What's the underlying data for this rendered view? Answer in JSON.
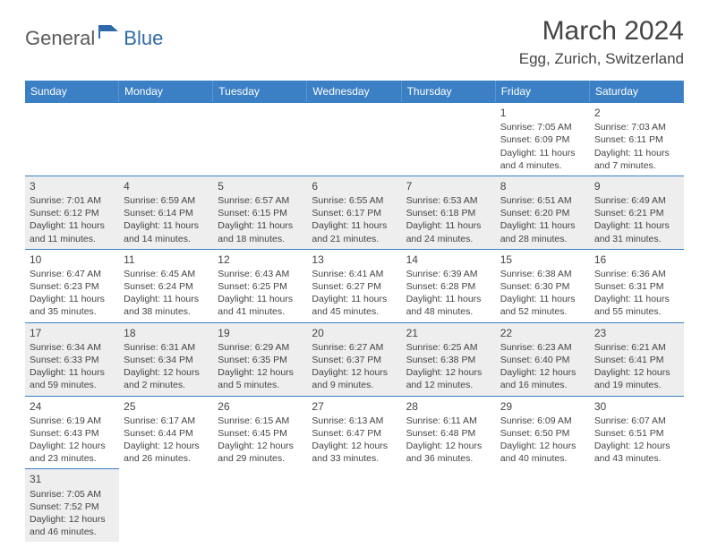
{
  "logo": {
    "text1": "General",
    "text2": "Blue"
  },
  "title": "March 2024",
  "location": "Egg, Zurich, Switzerland",
  "weekdays": [
    "Sunday",
    "Monday",
    "Tuesday",
    "Wednesday",
    "Thursday",
    "Friday",
    "Saturday"
  ],
  "colors": {
    "header_bg": "#3b7fc4",
    "header_text": "#ffffff",
    "cell_border": "#3b7fc4",
    "odd_row_bg": "#eeeeee",
    "even_row_bg": "#ffffff",
    "text": "#444444",
    "logo_gray": "#5a5a5a",
    "logo_blue": "#2f6aa8"
  },
  "leading_blanks": 5,
  "days": [
    {
      "n": "1",
      "sunrise": "Sunrise: 7:05 AM",
      "sunset": "Sunset: 6:09 PM",
      "daylight": "Daylight: 11 hours and 4 minutes."
    },
    {
      "n": "2",
      "sunrise": "Sunrise: 7:03 AM",
      "sunset": "Sunset: 6:11 PM",
      "daylight": "Daylight: 11 hours and 7 minutes."
    },
    {
      "n": "3",
      "sunrise": "Sunrise: 7:01 AM",
      "sunset": "Sunset: 6:12 PM",
      "daylight": "Daylight: 11 hours and 11 minutes."
    },
    {
      "n": "4",
      "sunrise": "Sunrise: 6:59 AM",
      "sunset": "Sunset: 6:14 PM",
      "daylight": "Daylight: 11 hours and 14 minutes."
    },
    {
      "n": "5",
      "sunrise": "Sunrise: 6:57 AM",
      "sunset": "Sunset: 6:15 PM",
      "daylight": "Daylight: 11 hours and 18 minutes."
    },
    {
      "n": "6",
      "sunrise": "Sunrise: 6:55 AM",
      "sunset": "Sunset: 6:17 PM",
      "daylight": "Daylight: 11 hours and 21 minutes."
    },
    {
      "n": "7",
      "sunrise": "Sunrise: 6:53 AM",
      "sunset": "Sunset: 6:18 PM",
      "daylight": "Daylight: 11 hours and 24 minutes."
    },
    {
      "n": "8",
      "sunrise": "Sunrise: 6:51 AM",
      "sunset": "Sunset: 6:20 PM",
      "daylight": "Daylight: 11 hours and 28 minutes."
    },
    {
      "n": "9",
      "sunrise": "Sunrise: 6:49 AM",
      "sunset": "Sunset: 6:21 PM",
      "daylight": "Daylight: 11 hours and 31 minutes."
    },
    {
      "n": "10",
      "sunrise": "Sunrise: 6:47 AM",
      "sunset": "Sunset: 6:23 PM",
      "daylight": "Daylight: 11 hours and 35 minutes."
    },
    {
      "n": "11",
      "sunrise": "Sunrise: 6:45 AM",
      "sunset": "Sunset: 6:24 PM",
      "daylight": "Daylight: 11 hours and 38 minutes."
    },
    {
      "n": "12",
      "sunrise": "Sunrise: 6:43 AM",
      "sunset": "Sunset: 6:25 PM",
      "daylight": "Daylight: 11 hours and 41 minutes."
    },
    {
      "n": "13",
      "sunrise": "Sunrise: 6:41 AM",
      "sunset": "Sunset: 6:27 PM",
      "daylight": "Daylight: 11 hours and 45 minutes."
    },
    {
      "n": "14",
      "sunrise": "Sunrise: 6:39 AM",
      "sunset": "Sunset: 6:28 PM",
      "daylight": "Daylight: 11 hours and 48 minutes."
    },
    {
      "n": "15",
      "sunrise": "Sunrise: 6:38 AM",
      "sunset": "Sunset: 6:30 PM",
      "daylight": "Daylight: 11 hours and 52 minutes."
    },
    {
      "n": "16",
      "sunrise": "Sunrise: 6:36 AM",
      "sunset": "Sunset: 6:31 PM",
      "daylight": "Daylight: 11 hours and 55 minutes."
    },
    {
      "n": "17",
      "sunrise": "Sunrise: 6:34 AM",
      "sunset": "Sunset: 6:33 PM",
      "daylight": "Daylight: 11 hours and 59 minutes."
    },
    {
      "n": "18",
      "sunrise": "Sunrise: 6:31 AM",
      "sunset": "Sunset: 6:34 PM",
      "daylight": "Daylight: 12 hours and 2 minutes."
    },
    {
      "n": "19",
      "sunrise": "Sunrise: 6:29 AM",
      "sunset": "Sunset: 6:35 PM",
      "daylight": "Daylight: 12 hours and 5 minutes."
    },
    {
      "n": "20",
      "sunrise": "Sunrise: 6:27 AM",
      "sunset": "Sunset: 6:37 PM",
      "daylight": "Daylight: 12 hours and 9 minutes."
    },
    {
      "n": "21",
      "sunrise": "Sunrise: 6:25 AM",
      "sunset": "Sunset: 6:38 PM",
      "daylight": "Daylight: 12 hours and 12 minutes."
    },
    {
      "n": "22",
      "sunrise": "Sunrise: 6:23 AM",
      "sunset": "Sunset: 6:40 PM",
      "daylight": "Daylight: 12 hours and 16 minutes."
    },
    {
      "n": "23",
      "sunrise": "Sunrise: 6:21 AM",
      "sunset": "Sunset: 6:41 PM",
      "daylight": "Daylight: 12 hours and 19 minutes."
    },
    {
      "n": "24",
      "sunrise": "Sunrise: 6:19 AM",
      "sunset": "Sunset: 6:43 PM",
      "daylight": "Daylight: 12 hours and 23 minutes."
    },
    {
      "n": "25",
      "sunrise": "Sunrise: 6:17 AM",
      "sunset": "Sunset: 6:44 PM",
      "daylight": "Daylight: 12 hours and 26 minutes."
    },
    {
      "n": "26",
      "sunrise": "Sunrise: 6:15 AM",
      "sunset": "Sunset: 6:45 PM",
      "daylight": "Daylight: 12 hours and 29 minutes."
    },
    {
      "n": "27",
      "sunrise": "Sunrise: 6:13 AM",
      "sunset": "Sunset: 6:47 PM",
      "daylight": "Daylight: 12 hours and 33 minutes."
    },
    {
      "n": "28",
      "sunrise": "Sunrise: 6:11 AM",
      "sunset": "Sunset: 6:48 PM",
      "daylight": "Daylight: 12 hours and 36 minutes."
    },
    {
      "n": "29",
      "sunrise": "Sunrise: 6:09 AM",
      "sunset": "Sunset: 6:50 PM",
      "daylight": "Daylight: 12 hours and 40 minutes."
    },
    {
      "n": "30",
      "sunrise": "Sunrise: 6:07 AM",
      "sunset": "Sunset: 6:51 PM",
      "daylight": "Daylight: 12 hours and 43 minutes."
    },
    {
      "n": "31",
      "sunrise": "Sunrise: 7:05 AM",
      "sunset": "Sunset: 7:52 PM",
      "daylight": "Daylight: 12 hours and 46 minutes."
    }
  ]
}
